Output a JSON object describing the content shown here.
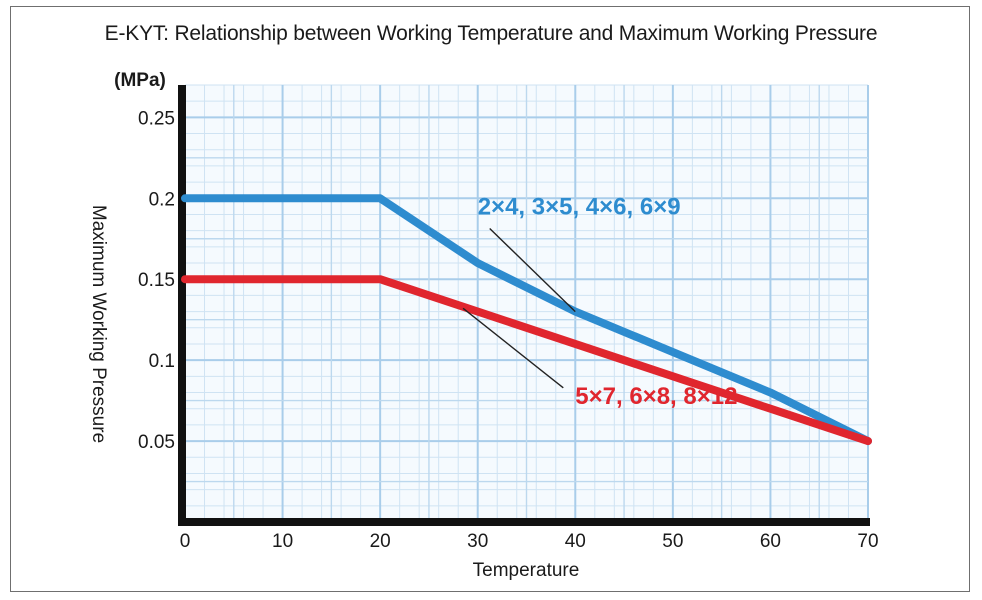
{
  "chart_data": {
    "type": "line",
    "title": "E-KYT: Relationship between Working Temperature and Maximum Working Pressure",
    "xlabel": "Temperature",
    "ylabel": "Maximum Working Pressure",
    "yunit": "(MPa)",
    "xlim": [
      0,
      70
    ],
    "ylim": [
      0,
      0.27
    ],
    "xticks": [
      "0",
      "10",
      "20",
      "30",
      "40",
      "50",
      "60",
      "70"
    ],
    "yticks": [
      {
        "value": 0.25,
        "label": "0.25"
      },
      {
        "value": 0.2,
        "label": "0.2"
      },
      {
        "value": 0.15,
        "label": "0.15"
      },
      {
        "value": 0.1,
        "label": "0.1"
      },
      {
        "value": 0.05,
        "label": "0.05"
      }
    ],
    "grid": true,
    "series": [
      {
        "name": "2×4, 3×5, 4×6, 6×9",
        "color": "#2e8ccf",
        "x": [
          0,
          20,
          30,
          40,
          50,
          60,
          70
        ],
        "y": [
          0.2,
          0.2,
          0.16,
          0.13,
          0.105,
          0.08,
          0.05
        ],
        "label_at": [
          30,
          0.19
        ],
        "pointer_at": [
          40,
          0.13
        ]
      },
      {
        "name": "5×7, 6×8, 8×12",
        "color": "#e0262e",
        "x": [
          0,
          20,
          30,
          40,
          50,
          60,
          70
        ],
        "y": [
          0.15,
          0.15,
          0.13,
          0.11,
          0.09,
          0.07,
          0.05
        ],
        "label_at": [
          40,
          0.073
        ],
        "pointer_at": [
          28.5,
          0.132
        ]
      }
    ]
  }
}
